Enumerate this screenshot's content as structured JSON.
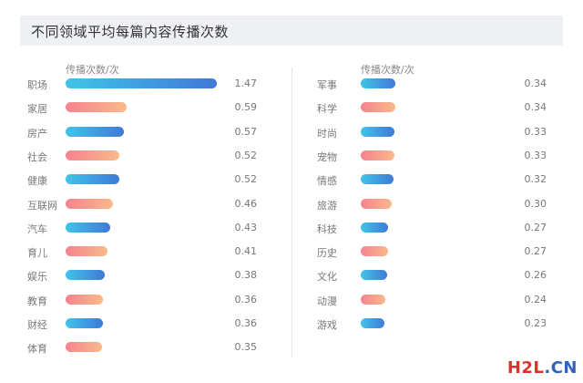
{
  "title": "不同领域平均每篇内容传播次数",
  "colors": {
    "blue_start": "#41c4e8",
    "blue_end": "#3f79d8",
    "pink_start": "#f5838f",
    "pink_end": "#f9b98b"
  },
  "watermark": {
    "part1": "H2L",
    "part2": ".CN"
  },
  "chart_data": [
    {
      "type": "bar",
      "orientation": "horizontal",
      "unit_label": "传播次数/次",
      "categories": [
        "职场",
        "家居",
        "房产",
        "社会",
        "健康",
        "互联网",
        "汽车",
        "育儿",
        "娱乐",
        "教育",
        "财经",
        "体育"
      ],
      "values": [
        1.47,
        0.59,
        0.57,
        0.52,
        0.52,
        0.46,
        0.43,
        0.41,
        0.38,
        0.36,
        0.36,
        0.35
      ],
      "value_labels": [
        "1.47",
        "0.59",
        "0.57",
        "0.52",
        "0.52",
        "0.46",
        "0.43",
        "0.41",
        "0.38",
        "0.36",
        "0.36",
        "0.35"
      ],
      "bar_colors": [
        "blue",
        "pink",
        "blue",
        "pink",
        "blue",
        "pink",
        "blue",
        "pink",
        "blue",
        "pink",
        "blue",
        "pink"
      ]
    },
    {
      "type": "bar",
      "orientation": "horizontal",
      "unit_label": "传播次数/次",
      "categories": [
        "军事",
        "科学",
        "时尚",
        "宠物",
        "情感",
        "旅游",
        "科技",
        "历史",
        "文化",
        "动漫",
        "游戏"
      ],
      "values": [
        0.34,
        0.34,
        0.33,
        0.33,
        0.32,
        0.3,
        0.27,
        0.27,
        0.26,
        0.24,
        0.23
      ],
      "value_labels": [
        "0.34",
        "0.34",
        "0.33",
        "0.33",
        "0.32",
        "0.30",
        "0.27",
        "0.27",
        "0.26",
        "0.24",
        "0.23"
      ],
      "bar_colors": [
        "blue",
        "pink",
        "blue",
        "pink",
        "blue",
        "pink",
        "blue",
        "pink",
        "blue",
        "pink",
        "blue"
      ]
    }
  ]
}
